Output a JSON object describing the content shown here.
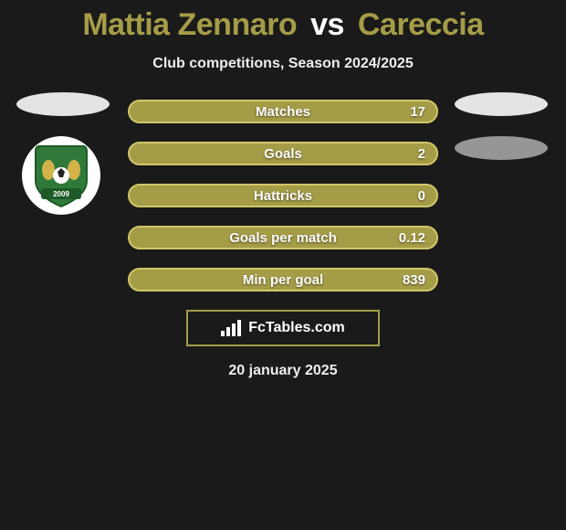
{
  "title": {
    "player1": "Mattia Zennaro",
    "vs": "vs",
    "player2": "Careccia",
    "player1_color": "#a59c47",
    "vs_color": "#ffffff",
    "player2_color": "#a59c47",
    "fontsize": 34
  },
  "subtitle": "Club competitions, Season 2024/2025",
  "left_ovals": {
    "oval1_color": "#e4e4e4"
  },
  "right_ovals": {
    "oval1_color": "#e4e4e4",
    "oval2_color": "#969696"
  },
  "club_badge": {
    "name": "FeralpiSalò",
    "year": "2009",
    "shield_fill": "#2f7a3a",
    "shield_border": "#1e5a27",
    "ball_color": "#ffffff"
  },
  "stats": [
    {
      "label": "Matches",
      "value": "17",
      "fill": "#a59c47",
      "border": "#cfc66a"
    },
    {
      "label": "Goals",
      "value": "2",
      "fill": "#a59c47",
      "border": "#cfc66a"
    },
    {
      "label": "Hattricks",
      "value": "0",
      "fill": "#a59c47",
      "border": "#cfc66a"
    },
    {
      "label": "Goals per match",
      "value": "0.12",
      "fill": "#a59c47",
      "border": "#cfc66a"
    },
    {
      "label": "Min per goal",
      "value": "839",
      "fill": "#a59c47",
      "border": "#cfc66a"
    }
  ],
  "footer": {
    "logo_text": "FcTables.com",
    "border_color": "#a59c47",
    "date": "20 january 2025"
  },
  "background_color": "#1a1a1a"
}
